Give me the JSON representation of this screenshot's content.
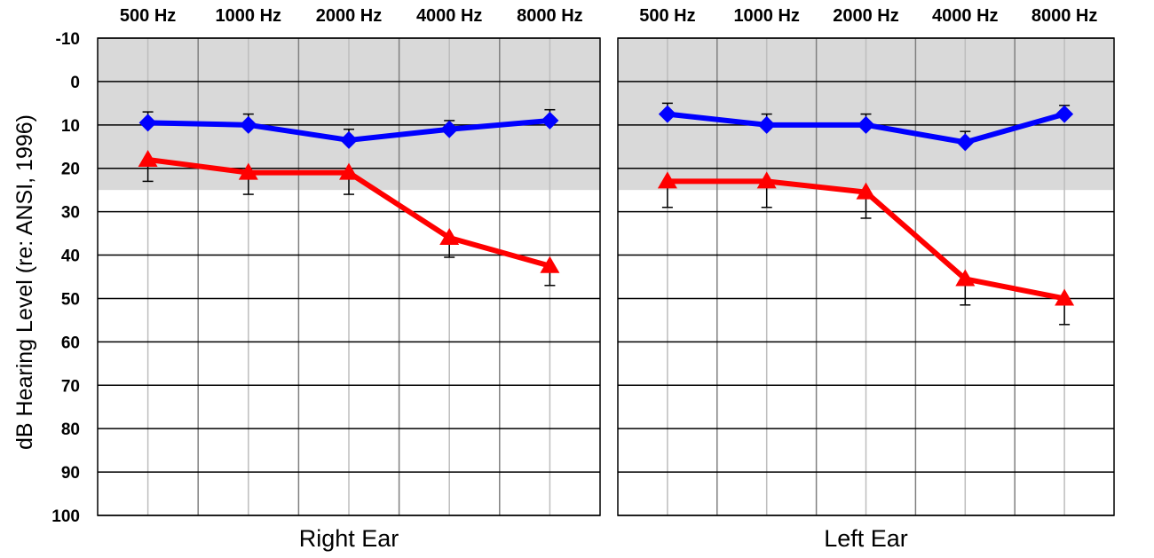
{
  "chart_data": {
    "type": "line",
    "ylabel": "dB Hearing Level (re: ANSI, 1996)",
    "yticks": [
      "-10",
      "0",
      "10",
      "20",
      "30",
      "40",
      "50",
      "60",
      "70",
      "80",
      "90",
      "100"
    ],
    "ylim": [
      -10,
      100
    ],
    "y_inverted": true,
    "grid": true,
    "normal_range": [
      -10,
      25
    ],
    "colors": {
      "series_a": "#0000ff",
      "series_b": "#ff0000",
      "shading": "#d9d9d9"
    },
    "panels": [
      {
        "xlabel": "Right Ear",
        "categories": [
          "500 Hz",
          "1000 Hz",
          "2000 Hz",
          "4000 Hz",
          "8000 Hz"
        ],
        "series": [
          {
            "marker": "diamond",
            "color": "#0000ff",
            "values": [
              9.5,
              10,
              13.5,
              11,
              9
            ],
            "errors": [
              2.5,
              2.5,
              2.5,
              2,
              2.5
            ]
          },
          {
            "marker": "triangle",
            "color": "#ff0000",
            "values": [
              18,
              21,
              21,
              36,
              42.5
            ],
            "errors": [
              5,
              5,
              5,
              4.5,
              4.5
            ]
          }
        ]
      },
      {
        "xlabel": "Left Ear",
        "categories": [
          "500 Hz",
          "1000 Hz",
          "2000 Hz",
          "4000 Hz",
          "8000 Hz"
        ],
        "series": [
          {
            "marker": "diamond",
            "color": "#0000ff",
            "values": [
              7.5,
              10,
              10,
              14,
              7.5
            ],
            "errors": [
              2.5,
              2.5,
              2.5,
              2.5,
              2
            ]
          },
          {
            "marker": "triangle",
            "color": "#ff0000",
            "values": [
              23,
              23,
              25.5,
              45.5,
              50
            ],
            "errors": [
              6,
              6,
              6,
              6,
              6
            ]
          }
        ]
      }
    ]
  }
}
